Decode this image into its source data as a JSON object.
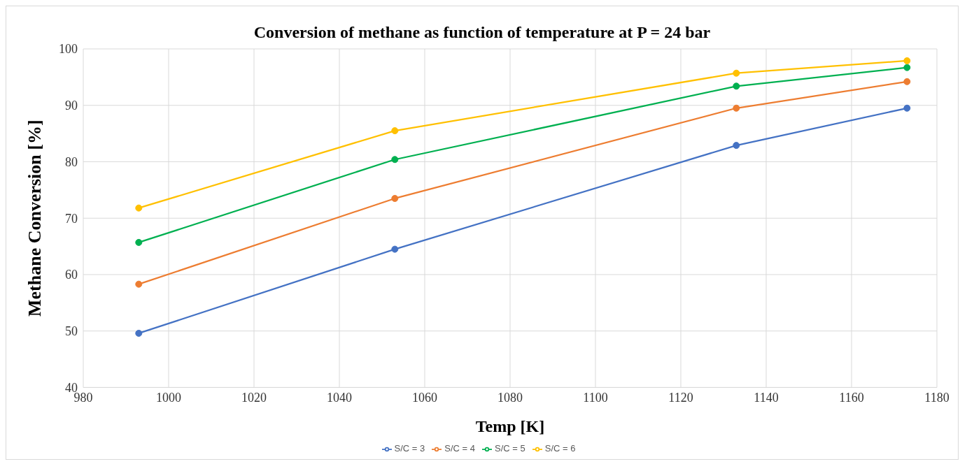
{
  "chart_data": {
    "type": "line",
    "title": "Conversion of methane as function of temperature at P = 24 bar",
    "xlabel": "Temp [K]",
    "ylabel": "Methane Conversion [%]",
    "x": [
      993,
      1053,
      1133,
      1173
    ],
    "series": [
      {
        "name": "S/C = 3",
        "color": "#4472c4",
        "values": [
          49.6,
          64.5,
          82.9,
          89.5
        ]
      },
      {
        "name": "S/C = 4",
        "color": "#ed7d31",
        "values": [
          58.3,
          73.5,
          89.5,
          94.2
        ]
      },
      {
        "name": "S/C = 5",
        "color": "#00b050",
        "values": [
          65.7,
          80.4,
          93.4,
          96.7
        ]
      },
      {
        "name": "S/C = 6",
        "color": "#ffc000",
        "values": [
          71.8,
          85.5,
          95.7,
          97.9
        ]
      }
    ],
    "xlim": [
      980,
      1180
    ],
    "xticks": [
      980,
      1000,
      1020,
      1040,
      1060,
      1080,
      1100,
      1120,
      1140,
      1160,
      1180
    ],
    "ylim": [
      40,
      100
    ],
    "yticks": [
      40,
      50,
      60,
      70,
      80,
      90,
      100
    ],
    "grid": true,
    "legend": "bottom",
    "marker": "circle",
    "line_style": "solid"
  }
}
